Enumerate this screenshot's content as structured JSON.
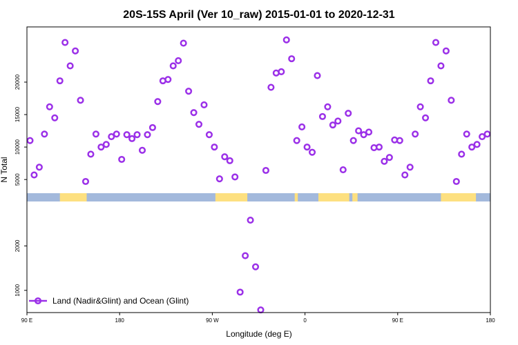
{
  "chart_data": {
    "type": "scatter",
    "title": "20S-15S April (Ver 10_raw)   2015-01-01 to 2020-12-31",
    "xlabel": "Longitude (deg E)",
    "ylabel": "N Total",
    "x_ticks": [
      {
        "value": 90,
        "label": "90 E"
      },
      {
        "value": 180,
        "label": "180"
      },
      {
        "value": 270,
        "label": "90 W"
      },
      {
        "value": 360,
        "label": "0"
      },
      {
        "value": 450,
        "label": "90 E"
      },
      {
        "value": 540,
        "label": "180"
      }
    ],
    "xlim": [
      90,
      540
    ],
    "upper_panel": {
      "ylim": [
        3000,
        28500
      ],
      "ticks": [
        5000,
        10000,
        15000,
        20000
      ]
    },
    "lower_panel": {
      "ylim": [
        500,
        3000
      ],
      "ticks": [
        1000,
        2000
      ]
    },
    "surface_band": {
      "ocean_color": "#a3b9dc",
      "land_color": "#fde080",
      "land_ranges": [
        [
          122,
          147
        ],
        [
          353,
          350
        ],
        [
          273,
          304
        ],
        [
          373,
          403
        ],
        [
          406,
          411
        ],
        [
          492,
          526
        ],
        [
          145,
          148
        ]
      ]
    },
    "series": [
      {
        "name": "Land (Nadir&Glint) and Ocean (Glint)",
        "color": "#9b30e8",
        "points": [
          {
            "x": 93,
            "y": 11000
          },
          {
            "x": 97,
            "y": 5700
          },
          {
            "x": 102,
            "y": 6900
          },
          {
            "x": 107,
            "y": 12000
          },
          {
            "x": 112,
            "y": 16200
          },
          {
            "x": 117,
            "y": 14500
          },
          {
            "x": 122,
            "y": 20200
          },
          {
            "x": 127,
            "y": 26100
          },
          {
            "x": 132,
            "y": 22500
          },
          {
            "x": 137,
            "y": 24800
          },
          {
            "x": 142,
            "y": 17200
          },
          {
            "x": 147,
            "y": 4700
          },
          {
            "x": 152,
            "y": 8900
          },
          {
            "x": 157,
            "y": 12000
          },
          {
            "x": 162,
            "y": 10000
          },
          {
            "x": 167,
            "y": 10400
          },
          {
            "x": 172,
            "y": 11600
          },
          {
            "x": 177,
            "y": 12000
          },
          {
            "x": 182,
            "y": 8100
          },
          {
            "x": 187,
            "y": 11900
          },
          {
            "x": 192,
            "y": 11300
          },
          {
            "x": 197,
            "y": 11900
          },
          {
            "x": 202,
            "y": 9500
          },
          {
            "x": 207,
            "y": 11900
          },
          {
            "x": 212,
            "y": 13000
          },
          {
            "x": 217,
            "y": 17000
          },
          {
            "x": 222,
            "y": 20200
          },
          {
            "x": 227,
            "y": 20400
          },
          {
            "x": 232,
            "y": 22500
          },
          {
            "x": 237,
            "y": 23300
          },
          {
            "x": 242,
            "y": 26000
          },
          {
            "x": 247,
            "y": 18600
          },
          {
            "x": 252,
            "y": 15300
          },
          {
            "x": 257,
            "y": 13500
          },
          {
            "x": 262,
            "y": 16500
          },
          {
            "x": 267,
            "y": 11900
          },
          {
            "x": 272,
            "y": 10000
          },
          {
            "x": 277,
            "y": 5100
          },
          {
            "x": 282,
            "y": 8500
          },
          {
            "x": 287,
            "y": 7900
          },
          {
            "x": 292,
            "y": 5400
          },
          {
            "x": 297,
            "y": 960
          },
          {
            "x": 302,
            "y": 1780
          },
          {
            "x": 307,
            "y": 2580
          },
          {
            "x": 312,
            "y": 1530
          },
          {
            "x": 317,
            "y": 560
          },
          {
            "x": 322,
            "y": 6400
          },
          {
            "x": 327,
            "y": 19200
          },
          {
            "x": 332,
            "y": 21400
          },
          {
            "x": 337,
            "y": 21600
          },
          {
            "x": 342,
            "y": 26500
          },
          {
            "x": 347,
            "y": 23600
          },
          {
            "x": 352,
            "y": 11000
          },
          {
            "x": 357,
            "y": 13100
          },
          {
            "x": 362,
            "y": 10000
          },
          {
            "x": 367,
            "y": 9200
          },
          {
            "x": 372,
            "y": 21000
          },
          {
            "x": 377,
            "y": 14700
          },
          {
            "x": 382,
            "y": 16200
          },
          {
            "x": 387,
            "y": 13400
          },
          {
            "x": 392,
            "y": 14000
          },
          {
            "x": 397,
            "y": 6500
          },
          {
            "x": 402,
            "y": 15200
          },
          {
            "x": 407,
            "y": 11000
          },
          {
            "x": 412,
            "y": 12500
          },
          {
            "x": 417,
            "y": 11900
          },
          {
            "x": 422,
            "y": 12300
          },
          {
            "x": 427,
            "y": 9900
          },
          {
            "x": 432,
            "y": 10000
          },
          {
            "x": 437,
            "y": 7800
          },
          {
            "x": 442,
            "y": 8400
          },
          {
            "x": 447,
            "y": 11100
          },
          {
            "x": 452,
            "y": 11000
          },
          {
            "x": 457,
            "y": 5700
          },
          {
            "x": 462,
            "y": 6900
          },
          {
            "x": 467,
            "y": 12000
          },
          {
            "x": 472,
            "y": 16200
          },
          {
            "x": 477,
            "y": 14500
          },
          {
            "x": 482,
            "y": 20200
          },
          {
            "x": 487,
            "y": 26100
          },
          {
            "x": 492,
            "y": 22500
          },
          {
            "x": 497,
            "y": 24800
          },
          {
            "x": 502,
            "y": 17200
          },
          {
            "x": 507,
            "y": 4700
          },
          {
            "x": 512,
            "y": 8900
          },
          {
            "x": 517,
            "y": 12000
          },
          {
            "x": 522,
            "y": 10000
          },
          {
            "x": 527,
            "y": 10400
          },
          {
            "x": 532,
            "y": 11600
          },
          {
            "x": 537,
            "y": 12000
          }
        ]
      }
    ],
    "legend": {
      "position": "bottom-left"
    }
  }
}
